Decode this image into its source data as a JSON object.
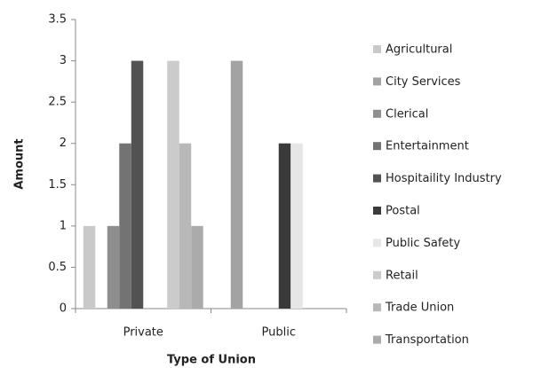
{
  "chart_data": {
    "type": "bar",
    "x_label": "Type of Union",
    "y_label": "Amount",
    "categories": [
      "Private",
      "Public"
    ],
    "series": [
      {
        "name": "Agricultural",
        "color": "#c9c9c9",
        "values": [
          1,
          0
        ]
      },
      {
        "name": "City Services",
        "color": "#a3a3a3",
        "values": [
          0,
          3
        ]
      },
      {
        "name": "Clerical",
        "color": "#8e8e8e",
        "values": [
          1,
          0
        ]
      },
      {
        "name": "Entertainment",
        "color": "#737373",
        "values": [
          2,
          0
        ]
      },
      {
        "name": "Hospitaility Industry",
        "color": "#525252",
        "values": [
          3,
          0
        ]
      },
      {
        "name": "Postal",
        "color": "#3a3a3a",
        "values": [
          0,
          2
        ]
      },
      {
        "name": "Public Safety",
        "color": "#e6e6e6",
        "values": [
          0,
          2
        ]
      },
      {
        "name": "Retail",
        "color": "#cbcbcb",
        "values": [
          3,
          0
        ]
      },
      {
        "name": "Trade Union",
        "color": "#b8b8b8",
        "values": [
          2,
          0
        ]
      },
      {
        "name": "Transportation",
        "color": "#ababab",
        "values": [
          1,
          0
        ]
      }
    ],
    "ylim": [
      0,
      3.5
    ],
    "yticks": [
      0,
      0.5,
      1,
      1.5,
      2,
      2.5,
      3,
      3.5
    ],
    "grid": false,
    "legend": "right"
  }
}
